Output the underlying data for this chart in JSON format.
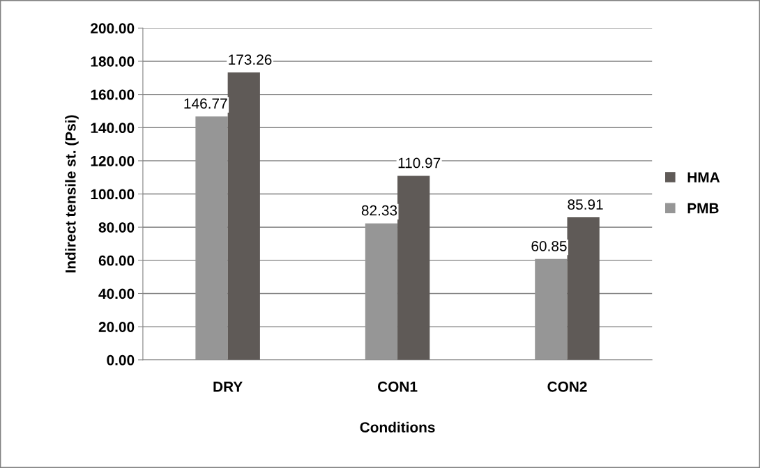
{
  "chart_data": {
    "type": "bar",
    "xlabel": "Conditions",
    "ylabel": "Indirect tensile st. (Psi)",
    "categories": [
      "DRY",
      "CON1",
      "CON2"
    ],
    "series": [
      {
        "name": "PMB",
        "color": "#969696",
        "values": [
          146.77,
          82.33,
          60.85
        ]
      },
      {
        "name": "HMA",
        "color": "#5f5a57",
        "values": [
          173.26,
          110.97,
          85.91
        ]
      }
    ],
    "ylim": [
      0,
      200
    ],
    "yticks": [
      {
        "value": 0,
        "label": "0.00"
      },
      {
        "value": 20,
        "label": "20.00"
      },
      {
        "value": 40,
        "label": "40.00"
      },
      {
        "value": 60,
        "label": "60.00"
      },
      {
        "value": 80,
        "label": "80.00"
      },
      {
        "value": 100,
        "label": "100.00"
      },
      {
        "value": 120,
        "label": "120.00"
      },
      {
        "value": 140,
        "label": "140.00"
      },
      {
        "value": 160,
        "label": "160.00"
      },
      {
        "value": 180,
        "label": "180.00"
      },
      {
        "value": 200,
        "label": "200.00"
      }
    ],
    "grid": "y",
    "legend": "right",
    "data_labels": true
  }
}
